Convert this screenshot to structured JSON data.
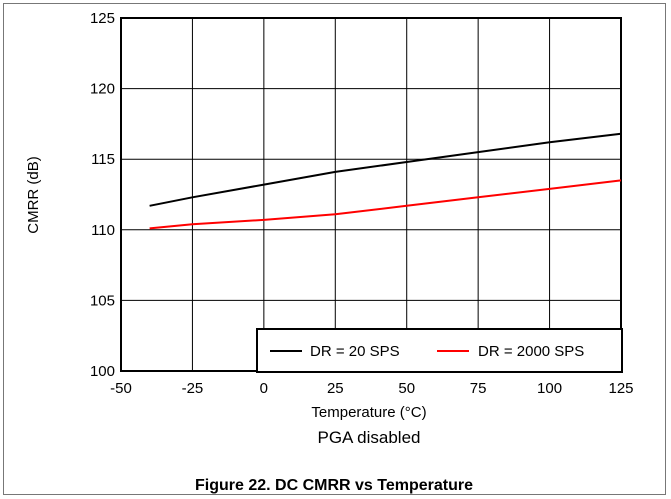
{
  "chart_data": {
    "type": "line",
    "title": "",
    "xlabel": "Temperature (°C)",
    "ylabel": "CMRR (dB)",
    "xlim": [
      -50,
      125
    ],
    "ylim": [
      100,
      125
    ],
    "x_ticks": [
      "-50",
      "-25",
      "0",
      "25",
      "50",
      "75",
      "100",
      "125"
    ],
    "y_ticks": [
      "100",
      "105",
      "110",
      "115",
      "120",
      "125"
    ],
    "grid": true,
    "legend_position": "bottom-right",
    "series": [
      {
        "name": "DR = 20 SPS",
        "color": "#000000",
        "x": [
          -40,
          -25,
          0,
          25,
          50,
          75,
          100,
          125
        ],
        "y": [
          111.7,
          112.3,
          113.2,
          114.1,
          114.8,
          115.5,
          116.2,
          116.8
        ]
      },
      {
        "name": "DR = 2000 SPS",
        "color": "#ff0000",
        "x": [
          -40,
          -25,
          0,
          25,
          50,
          75,
          100,
          125
        ],
        "y": [
          110.1,
          110.4,
          110.7,
          111.1,
          111.7,
          112.3,
          112.9,
          113.5
        ]
      }
    ],
    "annotation": "PGA disabled"
  },
  "caption": "Figure 22. DC CMRR vs Temperature"
}
